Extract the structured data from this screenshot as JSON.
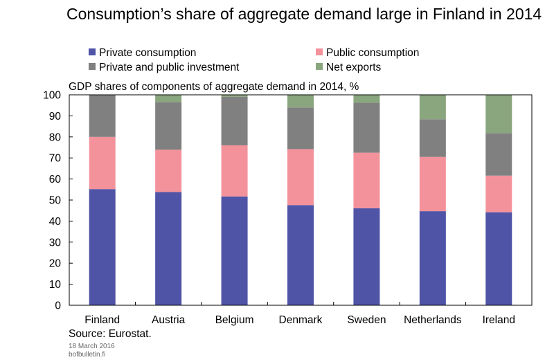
{
  "title": "Consumption’s share of aggregate demand large in Finland in 2014",
  "source": "Source: Eurostat.",
  "date": "18 March 2016",
  "site": "bofbulletin.fi",
  "chart_data": {
    "type": "bar",
    "stacked": true,
    "title": "GDP shares of components of aggregate demand in 2014, %",
    "categories": [
      "Finland",
      "Austria",
      "Belgium",
      "Denmark",
      "Sweden",
      "Netherlands",
      "Ireland"
    ],
    "ylim": [
      0,
      100
    ],
    "yticks": [
      0,
      10,
      20,
      30,
      40,
      50,
      60,
      70,
      80,
      90,
      100
    ],
    "legend_position": "top",
    "series": [
      {
        "name": "Private consumption",
        "color": "#4f54a6",
        "values": [
          55.2,
          53.8,
          51.7,
          47.6,
          46.1,
          44.7,
          44.2
        ]
      },
      {
        "name": "Public consumption",
        "color": "#f4929b",
        "values": [
          24.8,
          20.1,
          24.3,
          26.6,
          26.4,
          25.8,
          17.4
        ]
      },
      {
        "name": "Private and public investment",
        "color": "#808080",
        "values": [
          20.0,
          22.6,
          23.1,
          19.8,
          23.7,
          17.9,
          20.2
        ]
      },
      {
        "name": "Net exports",
        "color": "#8aa67e",
        "values": [
          0.0,
          3.5,
          0.9,
          6.0,
          3.8,
          11.6,
          18.2
        ]
      }
    ]
  }
}
